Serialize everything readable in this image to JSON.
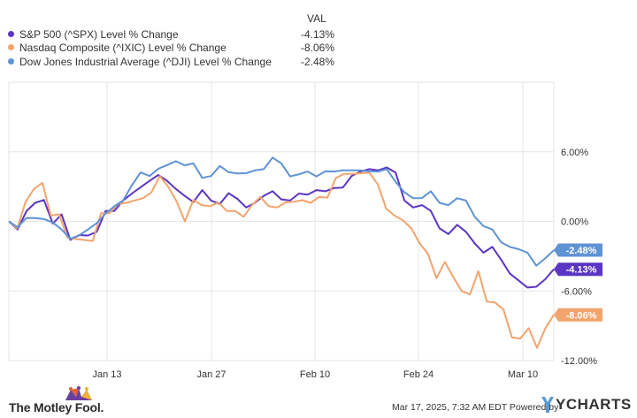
{
  "legend": {
    "header": "VAL",
    "items": [
      {
        "label": "S&P 500 (^SPX) Level % Change",
        "value": "-4.13%",
        "color": "#5b35c4"
      },
      {
        "label": "Nasdaq Composite (^IXIC) Level % Change",
        "value": "-8.06%",
        "color": "#f2a46d"
      },
      {
        "label": "Dow Jones Industrial Average (^DJI) Level % Change",
        "value": "-2.48%",
        "color": "#5f93d4"
      }
    ]
  },
  "chart_data": {
    "type": "line",
    "x_ticks": [
      "Jan 13",
      "Jan 27",
      "Feb 10",
      "Feb 24",
      "Mar 10"
    ],
    "y_ticks": [
      "6.00%",
      "0.00%",
      "-6.00%",
      "-12.00%"
    ],
    "ylim": [
      -12,
      6
    ],
    "grid": true,
    "series": [
      {
        "name": "S&P 500 (^SPX) Level % Change",
        "color": "#5b35c4",
        "end_label": "-4.13%",
        "end_value": -4.13,
        "values": [
          -0.0,
          -0.7,
          0.88,
          1.6,
          1.84,
          -0.2,
          0.6,
          -1.6,
          -1.18,
          -1.22,
          -0.9,
          0.9,
          0.9,
          1.8,
          2.4,
          2.95,
          3.49,
          4.0,
          3.5,
          2.8,
          2.2,
          1.66,
          2.7,
          1.8,
          1.5,
          2.43,
          1.94,
          1.2,
          1.6,
          2.2,
          2.6,
          1.9,
          1.8,
          2.4,
          2.3,
          2.7,
          2.6,
          2.87,
          2.91,
          3.92,
          4.3,
          4.5,
          4.4,
          4.65,
          4.2,
          1.8,
          1.2,
          1.4,
          0.91,
          -0.6,
          -1.1,
          -0.3,
          -0.9,
          -1.9,
          -2.7,
          -2.2,
          -3.3,
          -4.5,
          -5.1,
          -5.71,
          -5.64,
          -5.0,
          -4.13
        ]
      },
      {
        "name": "Nasdaq Composite (^IXIC) Level % Change",
        "color": "#f2a46d",
        "end_label": "-8.06%",
        "end_value": -8.06,
        "values": [
          -0.0,
          -0.6,
          1.7,
          2.8,
          3.32,
          0.5,
          0.6,
          -1.4,
          -1.52,
          -1.6,
          -1.7,
          0.7,
          0.7,
          1.5,
          1.6,
          1.8,
          2.0,
          2.5,
          3.9,
          3.0,
          1.74,
          0.0,
          1.84,
          1.4,
          1.3,
          1.62,
          0.9,
          0.9,
          0.4,
          1.4,
          2.1,
          1.3,
          1.2,
          1.64,
          1.7,
          1.83,
          1.6,
          2.1,
          2.05,
          3.73,
          4.1,
          4.1,
          4.15,
          4.2,
          3.2,
          1.1,
          0.5,
          0.1,
          -0.6,
          -1.9,
          -2.8,
          -4.9,
          -3.5,
          -4.8,
          -6.0,
          -6.3,
          -4.3,
          -6.9,
          -7.0,
          -7.6,
          -10.0,
          -10.1,
          -9.2,
          -10.9,
          -9.2,
          -8.06
        ]
      },
      {
        "name": "Dow Jones Industrial Average (^DJI) Level % Change",
        "color": "#5f93d4",
        "end_label": "-2.48%",
        "end_value": -2.48,
        "values": [
          -0.0,
          -0.5,
          0.3,
          0.28,
          0.2,
          -0.1,
          -0.7,
          -1.5,
          -1.2,
          -0.7,
          -0.15,
          0.68,
          1.3,
          1.8,
          3.12,
          4.22,
          3.91,
          4.53,
          4.85,
          5.19,
          4.84,
          5.0,
          3.75,
          3.91,
          4.78,
          4.24,
          4.13,
          4.15,
          4.4,
          4.5,
          5.5,
          5.0,
          3.88,
          4.06,
          4.3,
          3.88,
          4.31,
          4.3,
          4.4,
          4.4,
          4.4,
          4.31,
          4.3,
          4.5,
          3.4,
          2.5,
          2.0,
          2.01,
          2.6,
          1.6,
          1.4,
          2.0,
          1.8,
          0.4,
          -0.4,
          -0.7,
          -1.8,
          -2.2,
          -2.4,
          -2.7,
          -3.82,
          -3.2,
          -2.48
        ]
      }
    ]
  },
  "footer": {
    "brand": "The Motley Fool.",
    "note": "Mar 17, 2025, 7:32 AM EDT Powered by",
    "ycharts": "YCHARTS"
  }
}
